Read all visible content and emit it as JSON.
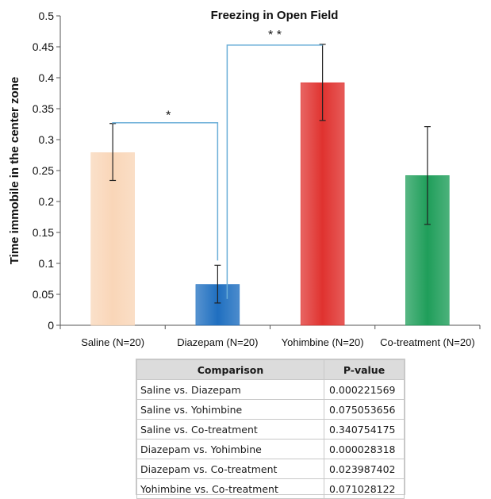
{
  "chart_data": {
    "type": "bar",
    "title": "Freezing in Open Field",
    "xlabel": "",
    "ylabel": "Time immobile in the center zone",
    "ylim": [
      0,
      0.5
    ],
    "yticks": [
      "0",
      "0.05",
      "0.1",
      "0.15",
      "0.2",
      "0.25",
      "0.3",
      "0.35",
      "0.4",
      "0.45",
      "0.5"
    ],
    "grid": false,
    "categories": [
      "Saline (N=20)",
      "Diazepam (N=20)",
      "Yohimbine (N=20)",
      "Co-treatment (N=20)"
    ],
    "values": [
      0.279,
      0.066,
      0.392,
      0.242
    ],
    "error_low": [
      0.234,
      0.036,
      0.331,
      0.163
    ],
    "error_high": [
      0.326,
      0.097,
      0.454,
      0.321
    ],
    "colors": [
      "#f9d6b8",
      "#1f6fc0",
      "#e0322f",
      "#1f9e5a"
    ],
    "annotations": [
      {
        "label": "*",
        "from": 0,
        "to": 1
      },
      {
        "label": "* *",
        "from": 1,
        "to": 2
      }
    ],
    "bracket_color": "#6aaed8"
  },
  "table": {
    "headers": [
      "Comparison",
      "P-value"
    ],
    "rows": [
      [
        "Saline vs. Diazepam",
        "0.000221569"
      ],
      [
        "Saline vs. Yohimbine",
        "0.075053656"
      ],
      [
        "Saline vs. Co-treatment",
        "0.340754175"
      ],
      [
        "Diazepam vs. Yohimbine",
        "0.000028318"
      ],
      [
        "Diazepam vs. Co-treatment",
        "0.023987402"
      ],
      [
        "Yohimbine vs. Co-treatment",
        "0.071028122"
      ]
    ]
  }
}
